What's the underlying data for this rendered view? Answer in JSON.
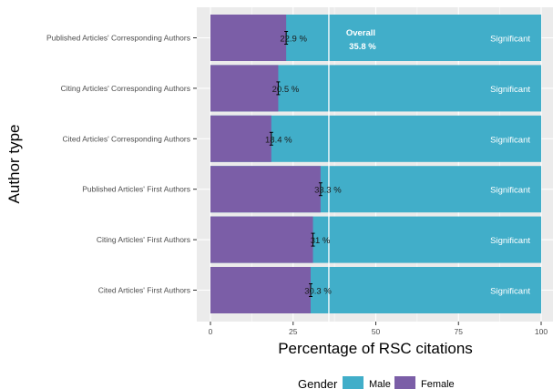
{
  "chart_data": {
    "type": "bar",
    "orientation": "horizontal",
    "stacked": true,
    "xlabel": "Percentage of RSC citations",
    "ylabel": "Author type",
    "xlim": [
      0,
      100
    ],
    "xticks": [
      "0",
      "25",
      "50",
      "75",
      "100"
    ],
    "grid": true,
    "categories": [
      "Published Articles' Corresponding Authors",
      "Citing Articles' Corresponding Authors",
      "Cited Articles' Corresponding Authors",
      "Published Articles' First Authors",
      "Citing Articles' First Authors",
      "Cited Articles' First Authors"
    ],
    "series": [
      {
        "name": "Female",
        "color": "#7b5ea7",
        "values": [
          22.9,
          20.5,
          18.4,
          33.3,
          31,
          30.3
        ]
      },
      {
        "name": "Male",
        "color": "#41aec9",
        "values": [
          77.1,
          79.5,
          81.6,
          66.7,
          69,
          69.7
        ]
      }
    ],
    "female_labels": [
      "22.9 %",
      "20.5 %",
      "18.4 %",
      "33.3 %",
      "31 %",
      "30.3 %"
    ],
    "significance_labels": [
      "Significant",
      "Significant",
      "Significant",
      "Significant",
      "Significant",
      "Significant"
    ],
    "reference_line": {
      "value": 35.8,
      "label_line1": "Overall",
      "label_line2": "35.8 %"
    },
    "legend": {
      "title": "Gender",
      "position": "bottom",
      "items": [
        "Male",
        "Female"
      ]
    }
  },
  "colors": {
    "male": "#41aec9",
    "female": "#7b5ea7",
    "panel": "#ebebeb"
  }
}
